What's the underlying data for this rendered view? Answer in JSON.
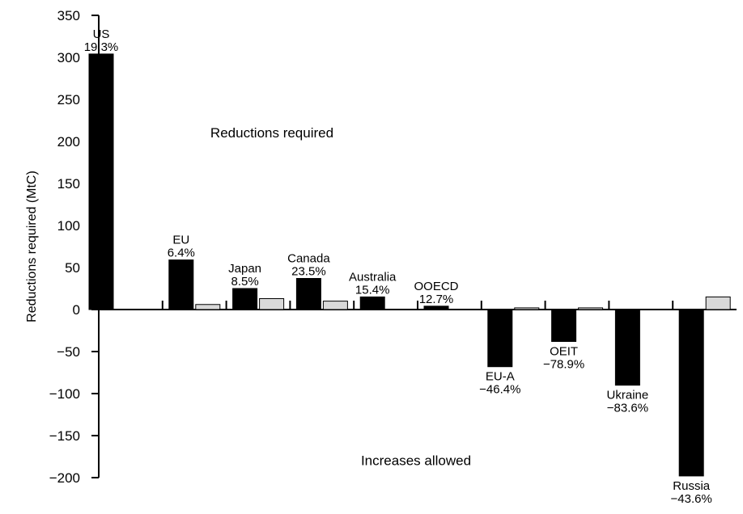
{
  "chart_data": {
    "type": "bar",
    "title": "",
    "ylabel": "Reductions required (MtC)",
    "xlabel": "",
    "ylim": [
      -200,
      350
    ],
    "yticks": [
      350,
      300,
      250,
      200,
      150,
      100,
      50,
      0,
      -50,
      -100,
      -150,
      -200
    ],
    "ytick_labels": [
      "350",
      "300",
      "250",
      "200",
      "150",
      "100",
      "50",
      "0",
      "−50",
      "−100",
      "−150",
      "−200"
    ],
    "categories": [
      "US",
      "EU",
      "Japan",
      "Canada",
      "Australia",
      "OOECD",
      "EU-A",
      "OEIT",
      "Ukraine",
      "Russia"
    ],
    "percent_labels": [
      "19.3%",
      "6.4%",
      "8.5%",
      "23.5%",
      "15.4%",
      "12.7%",
      "−46.4%",
      "−78.9%",
      "−83.6%",
      "−43.6%"
    ],
    "series": [
      {
        "values": [
          304,
          59,
          25,
          37,
          15,
          4,
          -68,
          -38,
          -90,
          -198
        ],
        "color": "#000000"
      },
      {
        "values": [
          null,
          6,
          13,
          10,
          null,
          null,
          2,
          2,
          null,
          15
        ],
        "color": "#d9d9d9"
      }
    ],
    "annotations": [
      "Reductions required",
      "Increases allowed"
    ],
    "grid": false,
    "legend": "none"
  }
}
